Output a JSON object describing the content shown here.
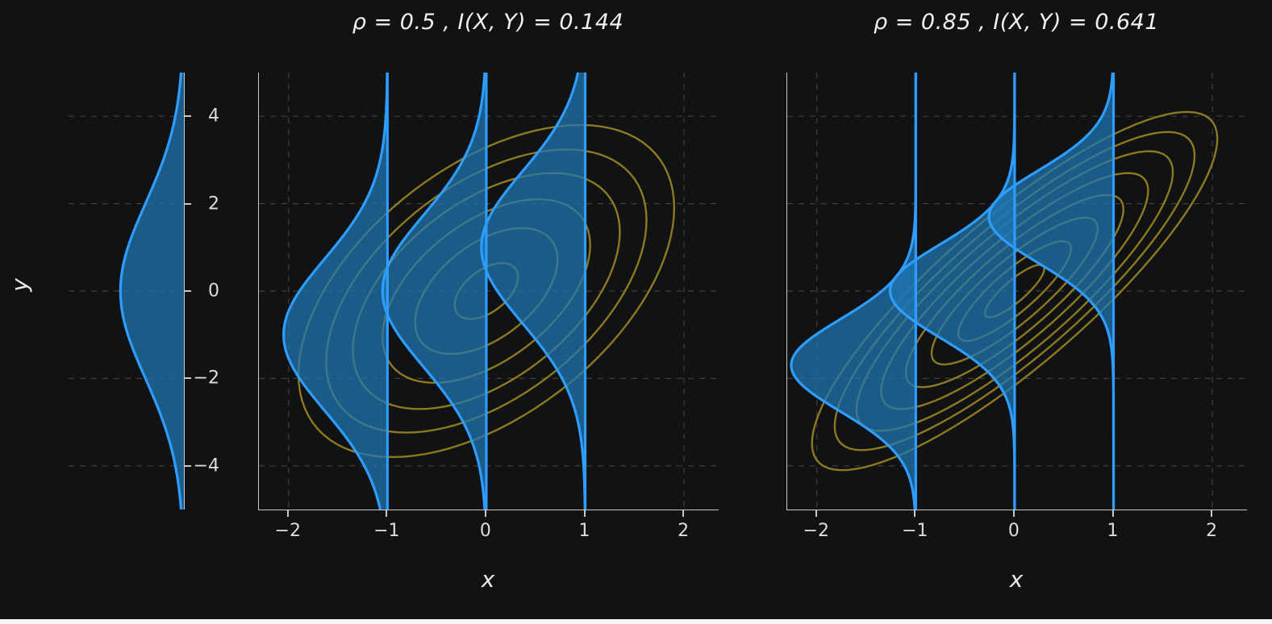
{
  "figure": {
    "ylabel": "y",
    "background": "#111214",
    "bottom_strip_color": "#f4f4f4"
  },
  "colors": {
    "line_blue": "#2f9dff",
    "fill_blue": "#1f77b4",
    "fill_opacity": 0.72,
    "contour": "#95801f",
    "grid": "#3f3f3f",
    "spine": "#c9c9c9",
    "text": "#e8e8e8"
  },
  "marginal": {
    "xlim": [
      0,
      1
    ],
    "ylim": [
      -5,
      5
    ],
    "mu": 0,
    "sigma": 2,
    "amp": 0.55
  },
  "chart_data": [
    {
      "type": "line",
      "subtype": "bivariate-gaussian-contour-with-conditional-slices",
      "title": "ρ = 0.5 ,  I(X, Y) = 0.144",
      "rho": 0.5,
      "mutual_information": 0.144,
      "xlabel": "x",
      "ylabel": "y",
      "xlim": [
        -2.3,
        2.35
      ],
      "ylim": [
        -5,
        5
      ],
      "xticks": [
        -2,
        -1,
        0,
        1,
        2
      ],
      "yticks": [
        -4,
        -2,
        0,
        2,
        4
      ],
      "grid": true,
      "legend": "none",
      "sigma_x": 1,
      "sigma_y": 2,
      "contour_radii": [
        0.32,
        0.72,
        1.05,
        1.35,
        1.62,
        1.9
      ],
      "slices": [
        -1,
        0,
        1
      ],
      "cond_mean_slope": 1.0,
      "cond_sigma": 1.732,
      "cond_amp": 1.05
    },
    {
      "type": "line",
      "subtype": "bivariate-gaussian-contour-with-conditional-slices",
      "title": "ρ = 0.85 ,  I(X, Y) = 0.641",
      "rho": 0.85,
      "mutual_information": 0.641,
      "xlabel": "x",
      "ylabel": "y",
      "xlim": [
        -2.3,
        2.35
      ],
      "ylim": [
        -5,
        5
      ],
      "xticks": [
        -2,
        -1,
        0,
        1,
        2
      ],
      "yticks": [
        -4,
        -2,
        0,
        2,
        4
      ],
      "grid": true,
      "legend": "none",
      "sigma_x": 1,
      "sigma_y": 2,
      "contour_radii": [
        0.3,
        0.57,
        0.84,
        1.1,
        1.35,
        1.6,
        1.82,
        2.05
      ],
      "slices": [
        -1,
        0,
        1
      ],
      "cond_mean_slope": 1.7,
      "cond_sigma": 1.054,
      "cond_amp": 1.26
    }
  ]
}
